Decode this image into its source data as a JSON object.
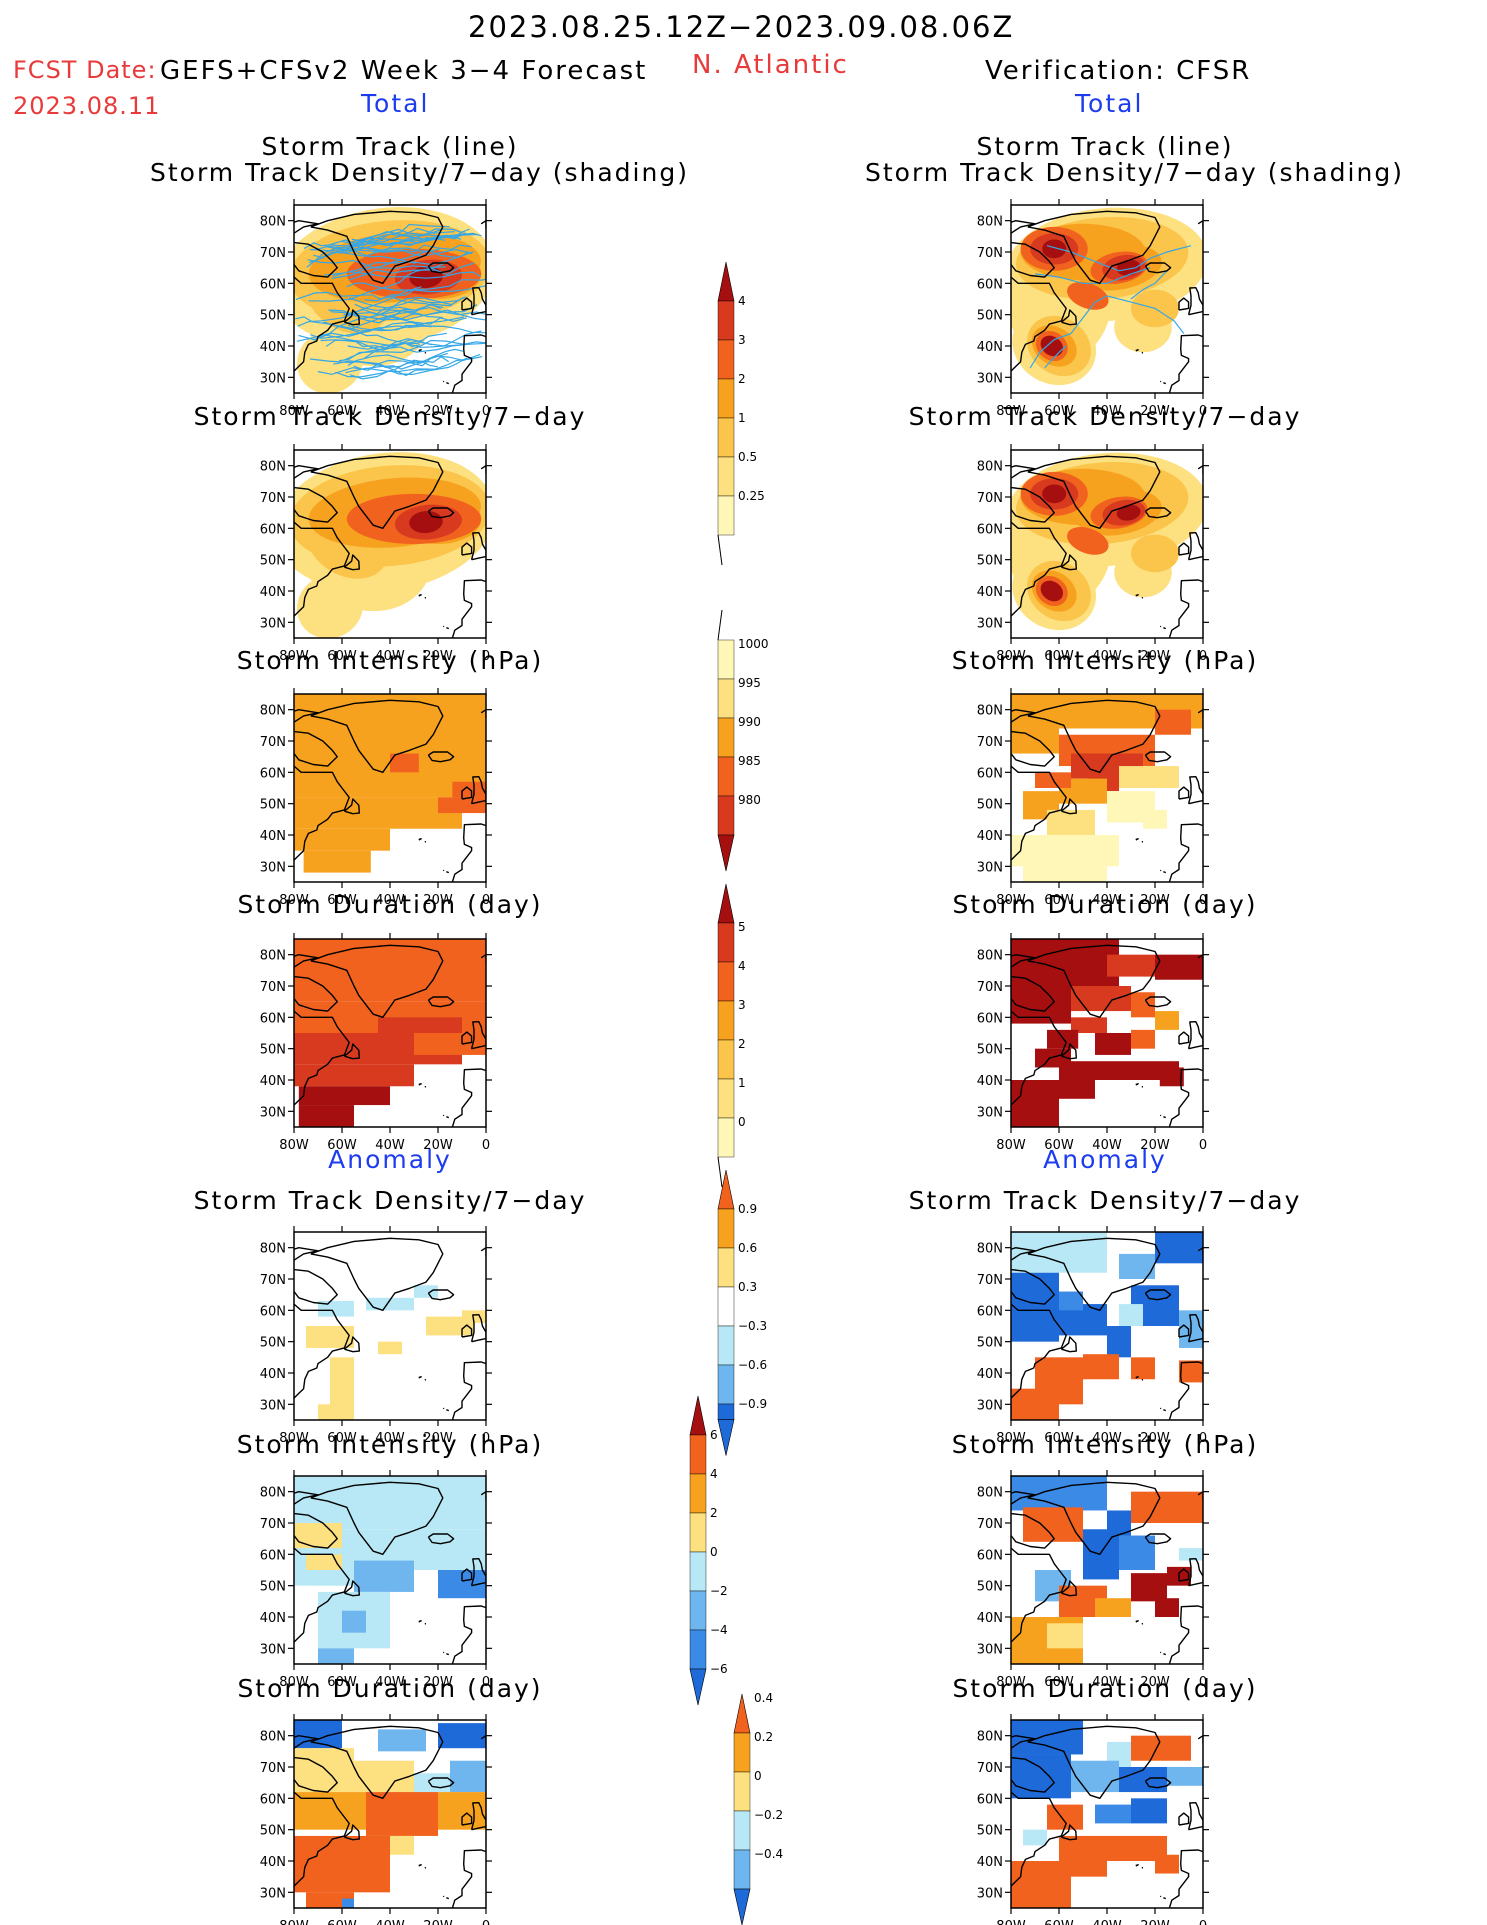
{
  "header": {
    "period": "2023.08.25.12Z−2023.09.08.06Z",
    "fcst_label": "FCST Date:",
    "fcst_model": "GEFS+CFSv2 Week 3−4 Forecast",
    "fcst_date": "2023.08.11",
    "region": "N. Atlantic",
    "verification": "Verification: CFSR",
    "left_total": "Total",
    "right_total": "Total",
    "left_anomaly": "Anomaly",
    "right_anomaly": "Anomaly"
  },
  "titles": {
    "track_line": "Storm Track (line)",
    "track_density_shading": "Storm Track Density/7−day (shading)",
    "track_density": "Storm Track Density/7−day",
    "intensity": "Storm Intensity (hPa)",
    "duration": "Storm Duration (day)"
  },
  "axes": {
    "lat_ticks": [
      "30N",
      "40N",
      "50N",
      "60N",
      "70N",
      "80N"
    ],
    "lon_ticks": [
      "80W",
      "60W",
      "40W",
      "20W",
      "0"
    ]
  },
  "colorbars": [
    {
      "id": "density",
      "labels": [
        "4",
        "3",
        "2",
        "1",
        "0.5",
        "0.25"
      ],
      "colors": [
        "#a50f0f",
        "#d73a1e",
        "#f0621e",
        "#f7a21f",
        "#fbc44a",
        "#fde07f",
        "#fff7b8"
      ]
    },
    {
      "id": "intensity",
      "labels": [
        "1000",
        "995",
        "990",
        "985",
        "980"
      ],
      "colors": [
        "#fff7b8",
        "#fde07f",
        "#f7a21f",
        "#f0621e",
        "#d73a1e",
        "#a50f0f"
      ]
    },
    {
      "id": "duration",
      "labels": [
        "5",
        "4",
        "3",
        "2",
        "1",
        "0"
      ],
      "colors": [
        "#a50f0f",
        "#d73a1e",
        "#f0621e",
        "#f7a21f",
        "#fbc44a",
        "#fde07f",
        "#fff7b8"
      ]
    },
    {
      "id": "density_anom",
      "labels": [
        "0.9",
        "0.6",
        "0.3",
        "−0.3",
        "−0.6",
        "−0.9"
      ],
      "colors": [
        "#f0621e",
        "#f7a21f",
        "#fde07f",
        "#ffffff",
        "#b8e8f5",
        "#6fb5ee",
        "#1e6ad8"
      ]
    },
    {
      "id": "intensity_anom",
      "labels": [
        "6",
        "4",
        "2",
        "0",
        "−2",
        "−4",
        "−6"
      ],
      "colors": [
        "#a50f0f",
        "#f0621e",
        "#f7a21f",
        "#fde07f",
        "#b8e8f5",
        "#6fb5ee",
        "#3a8ae6",
        "#1e6ad8"
      ]
    },
    {
      "id": "duration_anom",
      "labels": [
        "0.4",
        "0.2",
        "0",
        "−0.2",
        "−0.4"
      ],
      "colors": [
        "#f0621e",
        "#f7a21f",
        "#fde07f",
        "#b8e8f5",
        "#6fb5ee",
        "#1e6ad8"
      ]
    }
  ],
  "chart_data": [
    {
      "type": "heatmap",
      "title": "Storm Track (line) / Storm Track Density/7−day (shading)",
      "panel": "forecast-total",
      "colorbar": "density",
      "xlim": [
        -80,
        0
      ],
      "ylim": [
        25,
        85
      ],
      "has_track_lines": true,
      "note_levels": "shaded density levels 0.25, 0.5, 1, 2, 3, 4; maximum near 62N 25W"
    },
    {
      "type": "heatmap",
      "title": "Storm Track (line) / Storm Track Density/7−day (shading)",
      "panel": "verification-total",
      "colorbar": "density",
      "xlim": [
        -80,
        0
      ],
      "ylim": [
        25,
        85
      ],
      "has_track_lines": true
    },
    {
      "type": "heatmap",
      "title": "Storm Track Density/7−day",
      "panel": "forecast-total",
      "colorbar": "density",
      "xlim": [
        -80,
        0
      ],
      "ylim": [
        25,
        85
      ]
    },
    {
      "type": "heatmap",
      "title": "Storm Track Density/7−day",
      "panel": "verification-total",
      "colorbar": "density",
      "xlim": [
        -80,
        0
      ],
      "ylim": [
        25,
        85
      ]
    },
    {
      "type": "heatmap",
      "title": "Storm Intensity (hPa)",
      "panel": "forecast-total",
      "colorbar": "intensity",
      "xlim": [
        -80,
        0
      ],
      "ylim": [
        25,
        85
      ]
    },
    {
      "type": "heatmap",
      "title": "Storm Intensity (hPa)",
      "panel": "verification-total",
      "colorbar": "intensity",
      "xlim": [
        -80,
        0
      ],
      "ylim": [
        25,
        85
      ]
    },
    {
      "type": "heatmap",
      "title": "Storm Duration (day)",
      "panel": "forecast-total",
      "colorbar": "duration",
      "xlim": [
        -80,
        0
      ],
      "ylim": [
        25,
        85
      ]
    },
    {
      "type": "heatmap",
      "title": "Storm Duration (day)",
      "panel": "verification-total",
      "colorbar": "duration",
      "xlim": [
        -80,
        0
      ],
      "ylim": [
        25,
        85
      ]
    },
    {
      "type": "heatmap",
      "title": "Storm Track Density/7−day",
      "panel": "forecast-anomaly",
      "colorbar": "density_anom",
      "xlim": [
        -80,
        0
      ],
      "ylim": [
        25,
        85
      ]
    },
    {
      "type": "heatmap",
      "title": "Storm Track Density/7−day",
      "panel": "verification-anomaly",
      "colorbar": "density_anom",
      "xlim": [
        -80,
        0
      ],
      "ylim": [
        25,
        85
      ]
    },
    {
      "type": "heatmap",
      "title": "Storm Intensity (hPa)",
      "panel": "forecast-anomaly",
      "colorbar": "intensity_anom",
      "xlim": [
        -80,
        0
      ],
      "ylim": [
        25,
        85
      ]
    },
    {
      "type": "heatmap",
      "title": "Storm Intensity (hPa)",
      "panel": "verification-anomaly",
      "colorbar": "intensity_anom",
      "xlim": [
        -80,
        0
      ],
      "ylim": [
        25,
        85
      ]
    },
    {
      "type": "heatmap",
      "title": "Storm Duration (day)",
      "panel": "forecast-anomaly",
      "colorbar": "duration_anom",
      "xlim": [
        -80,
        0
      ],
      "ylim": [
        25,
        85
      ]
    },
    {
      "type": "heatmap",
      "title": "Storm Duration (day)",
      "panel": "verification-anomaly",
      "colorbar": "duration_anom",
      "xlim": [
        -80,
        0
      ],
      "ylim": [
        25,
        85
      ]
    }
  ]
}
